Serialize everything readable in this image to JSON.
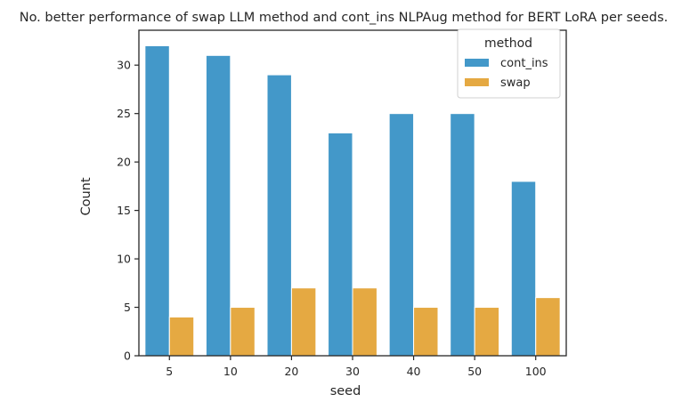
{
  "chart_data": {
    "type": "bar",
    "title": "No. better performance of swap LLM method and cont_ins NLPAug method for BERT LoRA per seeds.",
    "xlabel": "seed",
    "ylabel": "Count",
    "categories": [
      "5",
      "10",
      "20",
      "30",
      "40",
      "50",
      "100"
    ],
    "series": [
      {
        "name": "cont_ins",
        "color": "#4398c9",
        "values": [
          32,
          31,
          29,
          23,
          25,
          25,
          18
        ]
      },
      {
        "name": "swap",
        "color": "#e5a942",
        "values": [
          4,
          5,
          7,
          7,
          5,
          5,
          6
        ]
      }
    ],
    "ylim": [
      0,
      33.6
    ],
    "yticks": [
      0,
      5,
      10,
      15,
      20,
      25,
      30
    ],
    "grid": false,
    "legend": {
      "title": "method",
      "position": "top-right"
    }
  }
}
